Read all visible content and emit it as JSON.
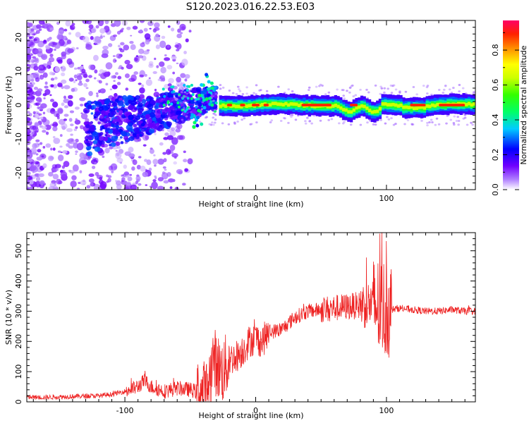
{
  "title": "S120.2023.016.22.53.E03",
  "chart_data": [
    {
      "type": "heatmap",
      "xlabel": "Height of straight line (km)",
      "ylabel": "Frequency (Hz)",
      "xlim": [
        -175,
        168
      ],
      "ylim": [
        -25,
        25
      ],
      "x_ticks": [
        -100,
        0,
        100
      ],
      "y_ticks": [
        -20,
        -10,
        0,
        10,
        20
      ],
      "colorbar": {
        "label": "Normalized spectral amplitude",
        "range": [
          0,
          0.97
        ],
        "ticks": [
          0.0,
          0.2,
          0.4,
          0.6,
          0.8
        ]
      },
      "features": [
        {
          "region": "scattered noise",
          "x_range": [
            -175,
            -50
          ],
          "freq_range": [
            -25,
            25
          ],
          "amplitude": 0.1
        },
        {
          "region": "diagonal band",
          "x_range": [
            -130,
            -30
          ],
          "freq_center_start": -7,
          "freq_center_end": 2,
          "amplitude": 0.25
        },
        {
          "region": "centerline",
          "x_range": [
            -28,
            168
          ],
          "freq_center": 0,
          "amplitude_peak": 0.95
        }
      ]
    },
    {
      "type": "line",
      "xlabel": "Height of straight line (km)",
      "ylabel": "SNR (10 * v/v)",
      "xlim": [
        -175,
        168
      ],
      "ylim": [
        0,
        560
      ],
      "x_ticks": [
        -100,
        0,
        100
      ],
      "y_ticks": [
        0,
        100,
        200,
        300,
        400,
        500
      ],
      "series": [
        {
          "color": "#ee2222",
          "x": [
            -175,
            -160,
            -140,
            -120,
            -110,
            -100,
            -90,
            -85,
            -80,
            -70,
            -60,
            -50,
            -42,
            -38,
            -35,
            -32,
            -30,
            -25,
            -20,
            -15,
            -10,
            -5,
            0,
            5,
            10,
            20,
            25,
            30,
            40,
            50,
            60,
            70,
            80,
            90,
            95,
            100,
            103,
            110,
            120,
            130,
            140,
            150,
            160,
            168
          ],
          "y": [
            15,
            15,
            18,
            20,
            25,
            35,
            50,
            70,
            50,
            35,
            45,
            40,
            30,
            30,
            80,
            150,
            120,
            100,
            140,
            150,
            170,
            200,
            210,
            200,
            230,
            240,
            260,
            280,
            300,
            305,
            310,
            315,
            320,
            325,
            310,
            310,
            305,
            310,
            305,
            300,
            300,
            305,
            300,
            300
          ]
        }
      ]
    }
  ]
}
